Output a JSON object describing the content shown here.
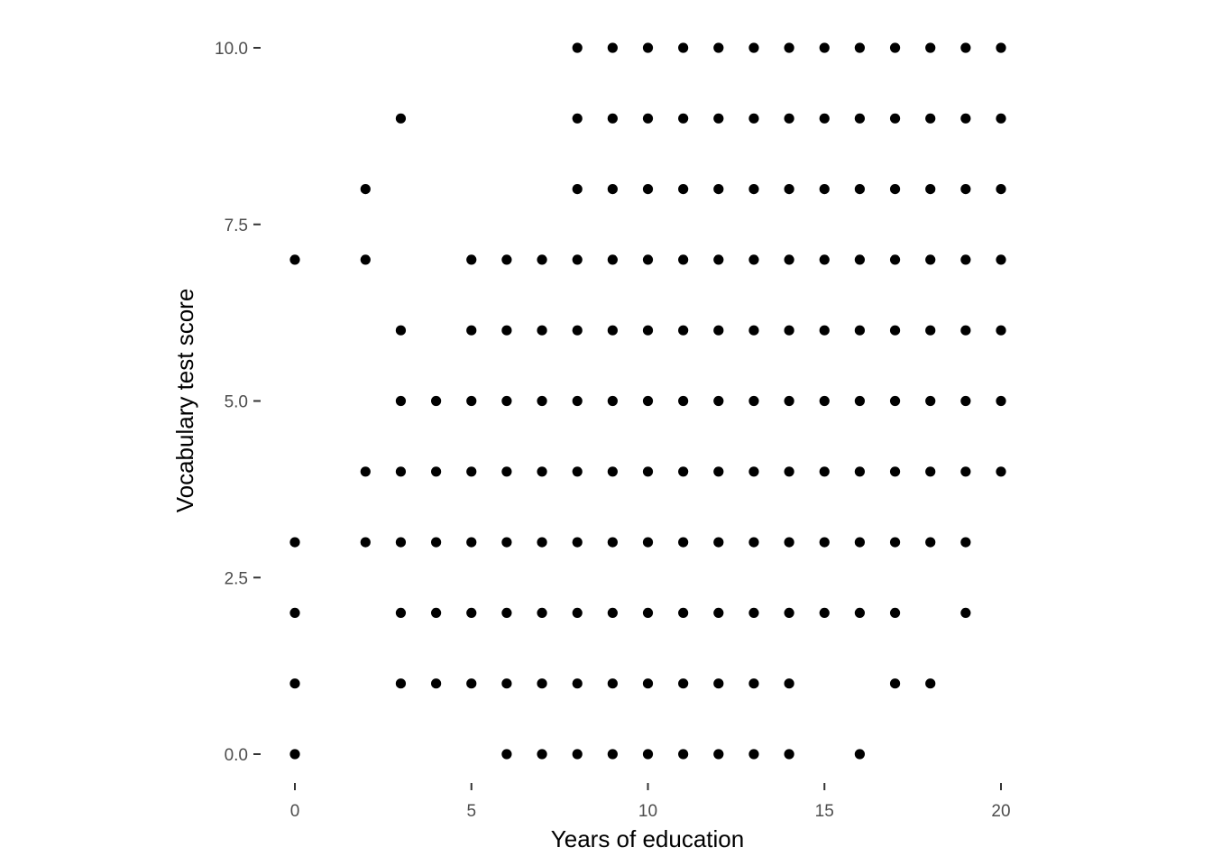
{
  "chart_data": {
    "type": "scatter",
    "title": "",
    "xlabel": "Years of education",
    "ylabel": "Vocabulary test score",
    "xlim": [
      -0.8,
      20.8
    ],
    "ylim": [
      -0.45,
      10.45
    ],
    "x_ticks": [
      0,
      5,
      10,
      15,
      20
    ],
    "x_tick_labels": [
      "0",
      "5",
      "10",
      "15",
      "20"
    ],
    "y_ticks": [
      0,
      2.5,
      5,
      7.5,
      10
    ],
    "y_tick_labels": [
      "0.0",
      "2.5",
      "5.0",
      "7.5",
      "10.0"
    ],
    "grid": false,
    "point_color": "#000000",
    "points_by_score": [
      {
        "y": 10,
        "x": [
          8,
          9,
          10,
          11,
          12,
          13,
          14,
          15,
          16,
          17,
          18,
          19,
          20
        ]
      },
      {
        "y": 9,
        "x": [
          3,
          8,
          9,
          10,
          11,
          12,
          13,
          14,
          15,
          16,
          17,
          18,
          19,
          20
        ]
      },
      {
        "y": 8,
        "x": [
          2,
          8,
          9,
          10,
          11,
          12,
          13,
          14,
          15,
          16,
          17,
          18,
          19,
          20
        ]
      },
      {
        "y": 7,
        "x": [
          0,
          2,
          5,
          6,
          7,
          8,
          9,
          10,
          11,
          12,
          13,
          14,
          15,
          16,
          17,
          18,
          19,
          20
        ]
      },
      {
        "y": 6,
        "x": [
          3,
          5,
          6,
          7,
          8,
          9,
          10,
          11,
          12,
          13,
          14,
          15,
          16,
          17,
          18,
          19,
          20
        ]
      },
      {
        "y": 5,
        "x": [
          3,
          4,
          5,
          6,
          7,
          8,
          9,
          10,
          11,
          12,
          13,
          14,
          15,
          16,
          17,
          18,
          19,
          20
        ]
      },
      {
        "y": 4,
        "x": [
          2,
          3,
          4,
          5,
          6,
          7,
          8,
          9,
          10,
          11,
          12,
          13,
          14,
          15,
          16,
          17,
          18,
          19,
          20
        ]
      },
      {
        "y": 3,
        "x": [
          0,
          2,
          3,
          4,
          5,
          6,
          7,
          8,
          9,
          10,
          11,
          12,
          13,
          14,
          15,
          16,
          17,
          18,
          19
        ]
      },
      {
        "y": 2,
        "x": [
          0,
          3,
          4,
          5,
          6,
          7,
          8,
          9,
          10,
          11,
          12,
          13,
          14,
          15,
          16,
          17,
          19
        ]
      },
      {
        "y": 1,
        "x": [
          0,
          3,
          4,
          5,
          6,
          7,
          8,
          9,
          10,
          11,
          12,
          13,
          14,
          17,
          18
        ]
      },
      {
        "y": 0,
        "x": [
          0,
          6,
          7,
          8,
          9,
          10,
          11,
          12,
          13,
          14,
          16
        ]
      }
    ]
  }
}
